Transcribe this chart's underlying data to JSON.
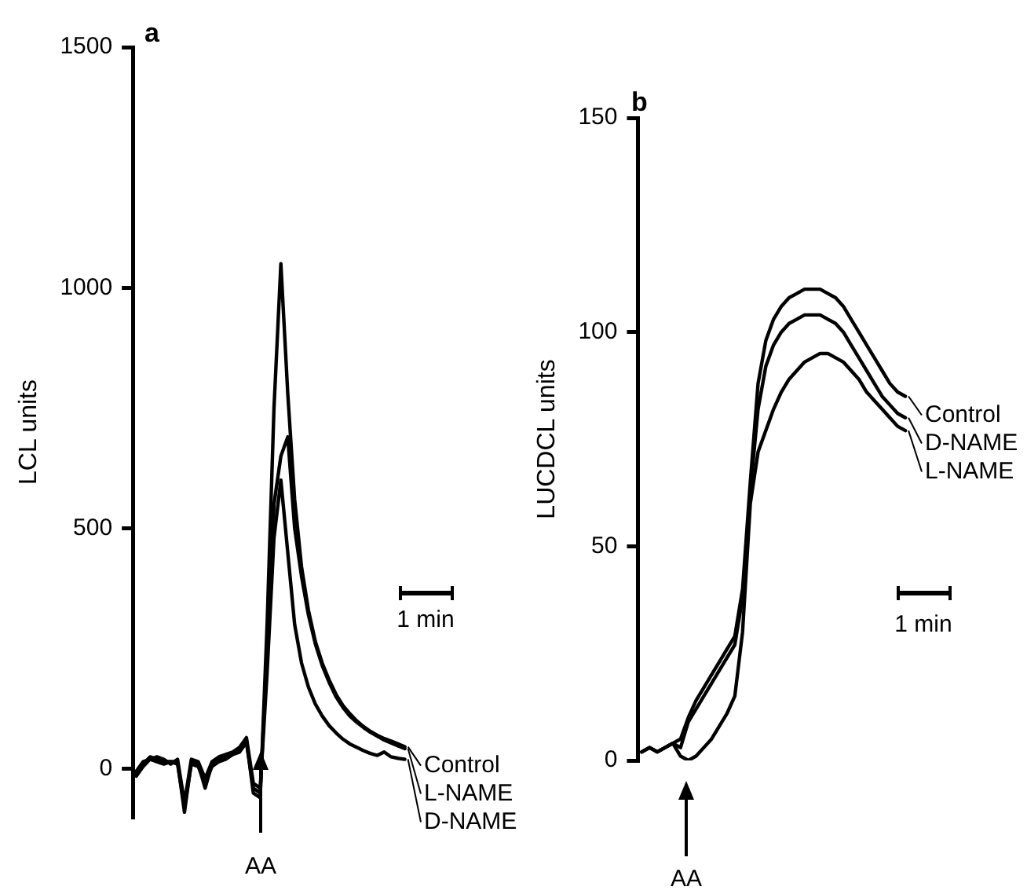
{
  "chart_data": [
    {
      "type": "line",
      "ylabel": "LCL units",
      "ylim": [
        -100,
        1500
      ],
      "yticks": [
        0,
        500,
        1000,
        1500
      ],
      "tick_labels": "y",
      "legend": "right",
      "grid": false,
      "marker": "none",
      "annotations": [
        "a",
        "AA",
        "1 min"
      ],
      "categories": [
        null,
        null,
        null,
        null,
        null,
        null,
        null,
        null,
        null,
        null,
        null,
        null,
        null,
        null,
        null,
        null,
        null,
        null,
        null,
        null,
        null,
        null,
        null,
        null,
        null,
        null,
        null,
        null,
        null,
        null,
        null,
        null,
        null,
        null,
        null,
        null,
        null,
        null,
        null,
        null
      ],
      "series": [
        {
          "name": "Control",
          "color": "#000000",
          "values": [
            -10,
            10,
            25,
            20,
            15,
            15,
            15,
            -90,
            15,
            10,
            -40,
            10,
            20,
            25,
            30,
            40,
            60,
            -50,
            -60,
            300,
            750,
            1050,
            780,
            560,
            420,
            330,
            265,
            220,
            185,
            155,
            132,
            115,
            100,
            88,
            78,
            70,
            63,
            58,
            52,
            46
          ]
        },
        {
          "name": "L-NAME",
          "color": "#000000",
          "values": [
            -5,
            15,
            20,
            15,
            10,
            15,
            10,
            -80,
            10,
            5,
            -30,
            5,
            15,
            20,
            30,
            35,
            55,
            -40,
            -50,
            250,
            550,
            650,
            690,
            500,
            400,
            320,
            260,
            215,
            180,
            150,
            128,
            110,
            97,
            86,
            76,
            68,
            60,
            54,
            48,
            42
          ]
        },
        {
          "name": "D-NAME",
          "color": "#000000",
          "values": [
            -15,
            5,
            20,
            25,
            20,
            10,
            20,
            -70,
            20,
            15,
            -20,
            15,
            25,
            30,
            35,
            45,
            65,
            -30,
            -40,
            200,
            480,
            600,
            450,
            300,
            220,
            170,
            135,
            110,
            90,
            75,
            62,
            52,
            45,
            38,
            32,
            28,
            35,
            25,
            22,
            20
          ]
        }
      ]
    },
    {
      "type": "line",
      "ylabel": "LUCDCL units",
      "ylim": [
        0,
        150
      ],
      "yticks": [
        0,
        50,
        100,
        150
      ],
      "tick_labels": "y",
      "legend": "right",
      "grid": false,
      "marker": "none",
      "annotations": [
        "b",
        "AA",
        "1 min"
      ],
      "categories": [
        null,
        null,
        null,
        null,
        null,
        null,
        null,
        null,
        null,
        null,
        null,
        null,
        null,
        null,
        null,
        null,
        null,
        null,
        null,
        null,
        null,
        null,
        null,
        null,
        null,
        null,
        null,
        null,
        null,
        null,
        null,
        null,
        null,
        null,
        null
      ],
      "series": [
        {
          "name": "Control",
          "color": "#000000",
          "values": [
            2,
            3,
            2,
            3,
            4,
            5,
            10,
            14,
            17,
            20,
            23,
            26,
            29,
            40,
            65,
            88,
            98,
            103,
            106,
            108,
            109,
            110,
            110,
            110,
            109,
            108,
            106,
            103,
            100,
            97,
            94,
            91,
            88,
            86,
            85
          ]
        },
        {
          "name": "D-NAME",
          "color": "#000000",
          "values": [
            2,
            3,
            2,
            3,
            4,
            3,
            9,
            12,
            15,
            18,
            21,
            24,
            27,
            38,
            63,
            82,
            92,
            97,
            100,
            102,
            103,
            104,
            104,
            104,
            103,
            102,
            100,
            97,
            94,
            91,
            88,
            85,
            83,
            81,
            80
          ]
        },
        {
          "name": "L-NAME",
          "color": "#000000",
          "values": [
            2,
            3,
            2,
            3,
            4,
            1,
            0,
            1,
            3,
            5,
            8,
            11,
            15,
            30,
            60,
            72,
            77,
            82,
            86,
            89,
            91,
            93,
            94,
            95,
            95,
            94,
            93,
            91,
            89,
            86,
            84,
            82,
            80,
            78,
            77
          ]
        }
      ]
    }
  ]
}
